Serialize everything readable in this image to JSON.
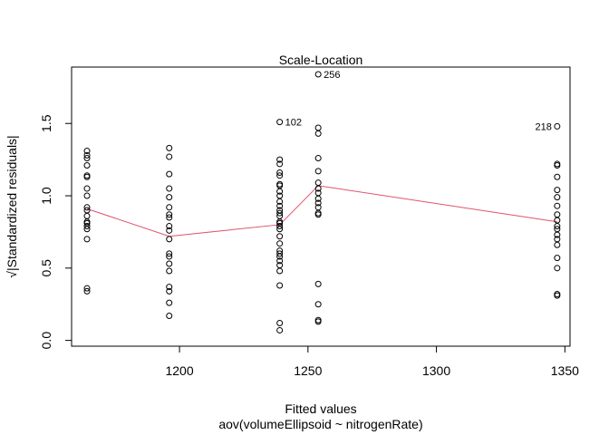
{
  "chart_data": {
    "type": "scatter",
    "title": "Scale-Location",
    "xlabel": "Fitted values",
    "xsublabel": "aov(volumeEllipsoid ~ nitrogenRate)",
    "ylabel": "√|Standardized residuals|",
    "xlim": [
      1158,
      1352
    ],
    "ylim": [
      -0.04,
      1.89
    ],
    "x_ticks": [
      {
        "value": 1200,
        "label": "1200"
      },
      {
        "value": 1250,
        "label": "1250"
      },
      {
        "value": 1300,
        "label": "1300"
      },
      {
        "value": 1350,
        "label": "1350"
      }
    ],
    "y_ticks": [
      {
        "value": 0.0,
        "label": "0.0"
      },
      {
        "value": 0.5,
        "label": "0.5"
      },
      {
        "value": 1.0,
        "label": "1.0"
      },
      {
        "value": 1.5,
        "label": "1.5"
      }
    ],
    "point_color": "#000000",
    "smooth_color": "#df536b",
    "groups": [
      {
        "x": 1164,
        "y": [
          1.31,
          1.28,
          1.26,
          1.21,
          1.14,
          1.13,
          1.05,
          1.0,
          0.92,
          0.9,
          0.86,
          0.82,
          0.81,
          0.79,
          0.77,
          0.7,
          0.36,
          0.34
        ]
      },
      {
        "x": 1196,
        "y": [
          1.33,
          1.27,
          1.15,
          1.05,
          0.99,
          0.92,
          0.87,
          0.85,
          0.79,
          0.76,
          0.7,
          0.6,
          0.58,
          0.53,
          0.48,
          0.37,
          0.34,
          0.26,
          0.17
        ]
      },
      {
        "x": 1239,
        "y": [
          1.51,
          1.25,
          1.22,
          1.16,
          1.14,
          1.08,
          1.07,
          1.03,
          1.0,
          0.96,
          0.93,
          0.9,
          0.88,
          0.86,
          0.82,
          0.81,
          0.79,
          0.77,
          0.72,
          0.67,
          0.62,
          0.6,
          0.58,
          0.55,
          0.52,
          0.48,
          0.38,
          0.12,
          0.07
        ]
      },
      {
        "x": 1254,
        "y": [
          1.84,
          1.47,
          1.43,
          1.26,
          1.17,
          1.09,
          1.05,
          1.02,
          0.98,
          0.95,
          0.92,
          0.88,
          0.87,
          0.39,
          0.25,
          0.14,
          0.13
        ]
      },
      {
        "x": 1347,
        "y": [
          1.48,
          1.22,
          1.21,
          1.13,
          1.04,
          0.99,
          0.93,
          0.87,
          0.83,
          0.79,
          0.77,
          0.73,
          0.7,
          0.66,
          0.57,
          0.5,
          0.32,
          0.31
        ]
      }
    ],
    "point_labels": [
      {
        "text": "256",
        "x": 1254,
        "y": 1.84,
        "side": "right"
      },
      {
        "text": "102",
        "x": 1239,
        "y": 1.51,
        "side": "right"
      },
      {
        "text": "218",
        "x": 1347,
        "y": 1.48,
        "side": "left"
      }
    ],
    "smooth_line": [
      {
        "x": 1164,
        "y": 0.91
      },
      {
        "x": 1196,
        "y": 0.72
      },
      {
        "x": 1239,
        "y": 0.8
      },
      {
        "x": 1254,
        "y": 1.07
      },
      {
        "x": 1347,
        "y": 0.82
      }
    ]
  }
}
